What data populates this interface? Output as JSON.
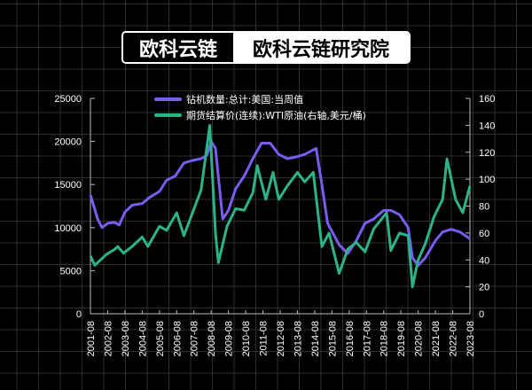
{
  "header": {
    "brand_left": "欧科云链",
    "brand_right": "欧科云链研究院"
  },
  "chart_data": {
    "type": "line",
    "grid": true,
    "legend_placement": "top-center",
    "x_ticks": [
      "2001-08",
      "2002-08",
      "2003-08",
      "2004-08",
      "2005-08",
      "2006-08",
      "2007-08",
      "2008-08",
      "2009-08",
      "2010-08",
      "2011-08",
      "2012-08",
      "2013-08",
      "2014-08",
      "2015-08",
      "2016-08",
      "2017-08",
      "2018-08",
      "2019-08",
      "2020-08",
      "2021-08",
      "2022-08",
      "2023-08"
    ],
    "xlim": [
      "2001-08",
      "2023-08"
    ],
    "y_left": {
      "lim": [
        0,
        25000
      ],
      "ticks": [
        0,
        5000,
        10000,
        15000,
        20000,
        25000
      ]
    },
    "y_right": {
      "lim": [
        0,
        160
      ],
      "ticks": [
        0,
        20,
        40,
        60,
        80,
        100,
        120,
        140,
        160
      ]
    },
    "series": [
      {
        "name": "钻机数量:总计:美国:当周值",
        "axis": "left",
        "color": "#7b5cf0",
        "points": [
          [
            "2001-08",
            13800
          ],
          [
            "2002-01",
            11000
          ],
          [
            "2002-04",
            10000
          ],
          [
            "2002-08",
            10500
          ],
          [
            "2003-01",
            10600
          ],
          [
            "2003-04",
            10300
          ],
          [
            "2003-08",
            11800
          ],
          [
            "2004-01",
            12600
          ],
          [
            "2004-08",
            12800
          ],
          [
            "2005-01",
            13500
          ],
          [
            "2005-08",
            14200
          ],
          [
            "2006-01",
            15500
          ],
          [
            "2006-07",
            16000
          ],
          [
            "2007-01",
            17500
          ],
          [
            "2007-07",
            17800
          ],
          [
            "2008-01",
            18000
          ],
          [
            "2008-05",
            18400
          ],
          [
            "2008-08",
            20000
          ],
          [
            "2008-11",
            19200
          ],
          [
            "2009-04",
            11000
          ],
          [
            "2009-08",
            12000
          ],
          [
            "2010-01",
            14500
          ],
          [
            "2010-07",
            16000
          ],
          [
            "2011-01",
            18000
          ],
          [
            "2011-07",
            19800
          ],
          [
            "2012-01",
            19800
          ],
          [
            "2012-07",
            18500
          ],
          [
            "2013-01",
            18000
          ],
          [
            "2013-07",
            18200
          ],
          [
            "2014-01",
            18500
          ],
          [
            "2014-09",
            19200
          ],
          [
            "2015-01",
            15000
          ],
          [
            "2015-05",
            10500
          ],
          [
            "2016-01",
            8000
          ],
          [
            "2016-07",
            7000
          ],
          [
            "2017-01",
            8500
          ],
          [
            "2017-07",
            10500
          ],
          [
            "2018-01",
            11000
          ],
          [
            "2018-08",
            12000
          ],
          [
            "2019-01",
            12000
          ],
          [
            "2019-07",
            11500
          ],
          [
            "2020-01",
            10000
          ],
          [
            "2020-04",
            6500
          ],
          [
            "2020-08",
            5600
          ],
          [
            "2021-01",
            6500
          ],
          [
            "2021-08",
            8500
          ],
          [
            "2022-01",
            9500
          ],
          [
            "2022-07",
            9800
          ],
          [
            "2023-01",
            9500
          ],
          [
            "2023-08",
            8700
          ]
        ]
      },
      {
        "name": "期货结算价(连续):WTI原油(右轴,美元/桶)",
        "axis": "right",
        "color": "#2db38a",
        "points": [
          [
            "2001-08",
            43
          ],
          [
            "2001-11",
            36
          ],
          [
            "2002-03",
            40
          ],
          [
            "2002-07",
            44
          ],
          [
            "2003-01",
            48
          ],
          [
            "2003-03",
            50
          ],
          [
            "2003-07",
            45
          ],
          [
            "2004-01",
            50
          ],
          [
            "2004-08",
            57
          ],
          [
            "2004-12",
            50
          ],
          [
            "2005-08",
            65
          ],
          [
            "2006-01",
            62
          ],
          [
            "2006-08",
            75
          ],
          [
            "2007-01",
            58
          ],
          [
            "2007-07",
            75
          ],
          [
            "2008-01",
            92
          ],
          [
            "2008-07",
            140
          ],
          [
            "2008-11",
            60
          ],
          [
            "2009-01",
            38
          ],
          [
            "2009-07",
            65
          ],
          [
            "2010-01",
            78
          ],
          [
            "2010-07",
            77
          ],
          [
            "2011-01",
            90
          ],
          [
            "2011-04",
            110
          ],
          [
            "2011-10",
            85
          ],
          [
            "2012-03",
            105
          ],
          [
            "2012-07",
            85
          ],
          [
            "2013-01",
            95
          ],
          [
            "2013-08",
            105
          ],
          [
            "2014-01",
            98
          ],
          [
            "2014-07",
            105
          ],
          [
            "2015-01",
            50
          ],
          [
            "2015-06",
            60
          ],
          [
            "2016-01",
            30
          ],
          [
            "2016-07",
            48
          ],
          [
            "2017-01",
            53
          ],
          [
            "2017-07",
            46
          ],
          [
            "2018-01",
            63
          ],
          [
            "2018-10",
            75
          ],
          [
            "2019-01",
            47
          ],
          [
            "2019-07",
            60
          ],
          [
            "2020-01",
            58
          ],
          [
            "2020-04",
            20
          ],
          [
            "2020-08",
            40
          ],
          [
            "2021-01",
            52
          ],
          [
            "2021-07",
            72
          ],
          [
            "2022-01",
            85
          ],
          [
            "2022-04",
            115
          ],
          [
            "2022-10",
            85
          ],
          [
            "2023-03",
            75
          ],
          [
            "2023-08",
            95
          ]
        ]
      }
    ]
  }
}
